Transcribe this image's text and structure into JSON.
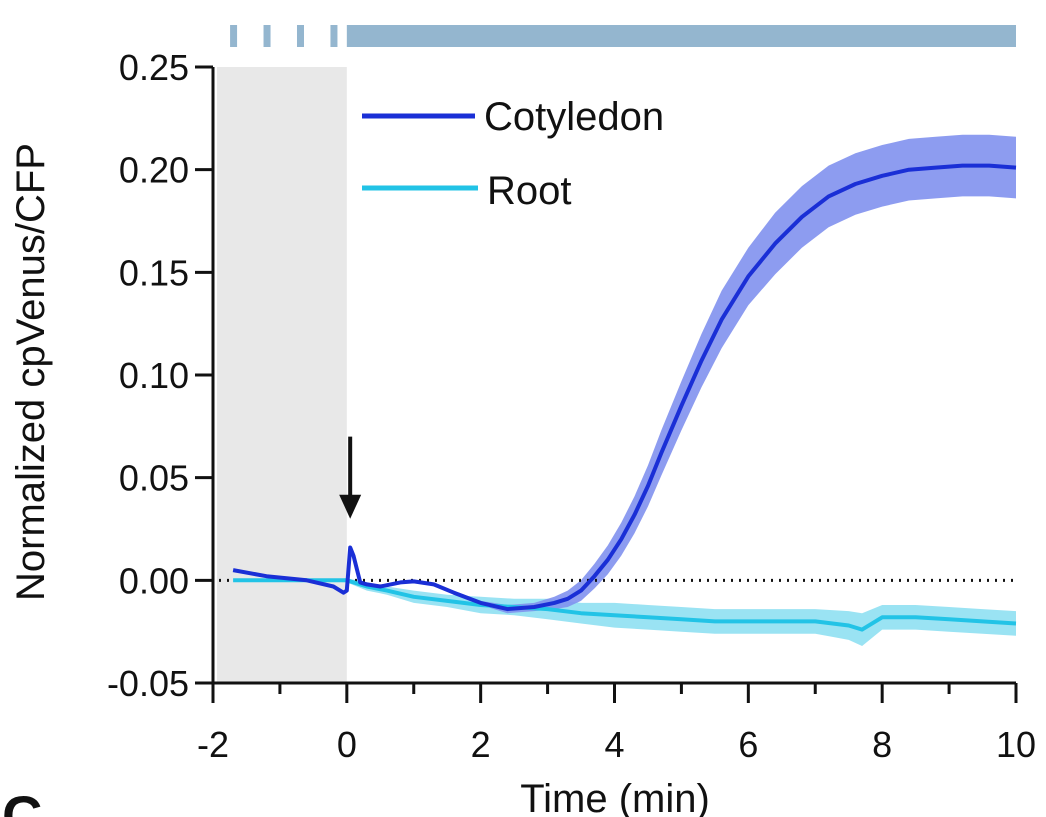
{
  "figure": {
    "panel_letter": "C"
  },
  "chart_data": {
    "type": "line",
    "title": "",
    "xlabel": "Time (min)",
    "ylabel": "Normalized cpVenus/CFP",
    "xlim": [
      -2,
      10
    ],
    "ylim": [
      -0.05,
      0.25
    ],
    "x_ticks": [
      -2,
      0,
      2,
      4,
      6,
      8,
      10
    ],
    "x_tick_labels": [
      "-2",
      "0",
      "2",
      "4",
      "6",
      "8",
      "10"
    ],
    "y_ticks": [
      -0.05,
      0.0,
      0.05,
      0.1,
      0.15,
      0.2,
      0.25
    ],
    "y_tick_labels": [
      "-0.05",
      "0.00",
      "0.05",
      "0.10",
      "0.15",
      "0.20",
      "0.25"
    ],
    "grid": false,
    "legend_position": "top-left inside plot",
    "baseline": {
      "y": 0,
      "style": "dotted"
    },
    "shaded_region": {
      "x_start": -2,
      "x_end": 0,
      "color": "#e8e8e8"
    },
    "stimulus_bar": {
      "color": "#94b6cf",
      "pulses": [
        -1.7,
        -1.2,
        -0.7,
        -0.2
      ],
      "continuous_from": 0,
      "continuous_to": 10
    },
    "arrow_annotation": {
      "x": 0.05,
      "y_tip": 0.03,
      "y_tail": 0.07
    },
    "series": [
      {
        "name": "Cotyledon",
        "color": "#1a2fd6",
        "band_color": "#8191ee",
        "x": [
          -1.7,
          -1.2,
          -0.6,
          -0.2,
          -0.05,
          0.0,
          0.05,
          0.1,
          0.2,
          0.3,
          0.5,
          0.8,
          1.0,
          1.3,
          1.6,
          2.0,
          2.4,
          2.8,
          3.1,
          3.3,
          3.5,
          3.7,
          3.9,
          4.1,
          4.3,
          4.5,
          4.7,
          5.0,
          5.3,
          5.6,
          6.0,
          6.4,
          6.8,
          7.2,
          7.6,
          8.0,
          8.4,
          8.8,
          9.2,
          9.6,
          10.0
        ],
        "y": [
          0.005,
          0.002,
          0.0,
          -0.003,
          -0.006,
          -0.005,
          0.016,
          0.012,
          -0.001,
          -0.002,
          -0.003,
          -0.001,
          -0.0005,
          -0.002,
          -0.006,
          -0.011,
          -0.014,
          -0.013,
          -0.011,
          -0.009,
          -0.005,
          0.002,
          0.01,
          0.02,
          0.032,
          0.046,
          0.062,
          0.085,
          0.107,
          0.127,
          0.148,
          0.164,
          0.177,
          0.187,
          0.193,
          0.197,
          0.2,
          0.201,
          0.202,
          0.202,
          0.201
        ],
        "error": [
          0.0,
          0.0,
          0.0,
          0.0,
          0.0,
          0.0,
          0.0,
          0.0,
          0.0,
          0.0,
          0.0,
          0.0,
          0.0,
          0.0,
          0.001,
          0.001,
          0.002,
          0.002,
          0.003,
          0.004,
          0.005,
          0.006,
          0.007,
          0.008,
          0.009,
          0.01,
          0.011,
          0.012,
          0.013,
          0.014,
          0.014,
          0.015,
          0.015,
          0.015,
          0.015,
          0.015,
          0.015,
          0.015,
          0.015,
          0.015,
          0.015
        ]
      },
      {
        "name": "Root",
        "color": "#22c3e6",
        "band_color": "#8fe0f2",
        "x": [
          -1.7,
          -1.0,
          -0.5,
          0.0,
          0.3,
          0.6,
          1.0,
          1.5,
          2.0,
          2.5,
          3.0,
          3.5,
          4.0,
          4.5,
          5.0,
          5.5,
          6.0,
          6.5,
          7.0,
          7.5,
          7.7,
          8.0,
          8.5,
          9.0,
          9.5,
          10.0
        ],
        "y": [
          0.0,
          0.0,
          0.0,
          0.0,
          -0.003,
          -0.005,
          -0.008,
          -0.01,
          -0.012,
          -0.013,
          -0.014,
          -0.016,
          -0.017,
          -0.018,
          -0.019,
          -0.02,
          -0.02,
          -0.02,
          -0.02,
          -0.022,
          -0.024,
          -0.018,
          -0.018,
          -0.019,
          -0.02,
          -0.021
        ],
        "error": [
          0.0,
          0.0,
          0.0,
          0.001,
          0.002,
          0.002,
          0.003,
          0.003,
          0.004,
          0.004,
          0.005,
          0.005,
          0.006,
          0.006,
          0.006,
          0.006,
          0.006,
          0.006,
          0.006,
          0.007,
          0.008,
          0.006,
          0.006,
          0.006,
          0.006,
          0.006
        ]
      }
    ]
  }
}
